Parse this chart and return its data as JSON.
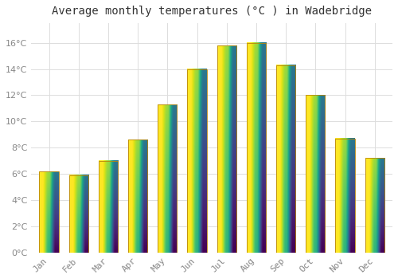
{
  "title": "Average monthly temperatures (°C ) in Wadebridge",
  "months": [
    "Jan",
    "Feb",
    "Mar",
    "Apr",
    "May",
    "Jun",
    "Jul",
    "Aug",
    "Sep",
    "Oct",
    "Nov",
    "Dec"
  ],
  "values": [
    6.2,
    5.9,
    7.0,
    8.6,
    11.3,
    14.0,
    15.8,
    16.0,
    14.3,
    12.0,
    8.7,
    7.2
  ],
  "bar_color_top": "#FFD966",
  "bar_color_bottom": "#FFA500",
  "bar_edge_color": "#B8860B",
  "background_color": "#FFFFFF",
  "grid_color": "#DDDDDD",
  "text_color": "#888888",
  "ylim": [
    0,
    17.5
  ],
  "yticks": [
    0,
    2,
    4,
    6,
    8,
    10,
    12,
    14,
    16
  ],
  "title_fontsize": 10,
  "tick_fontsize": 8,
  "bar_width": 0.65
}
